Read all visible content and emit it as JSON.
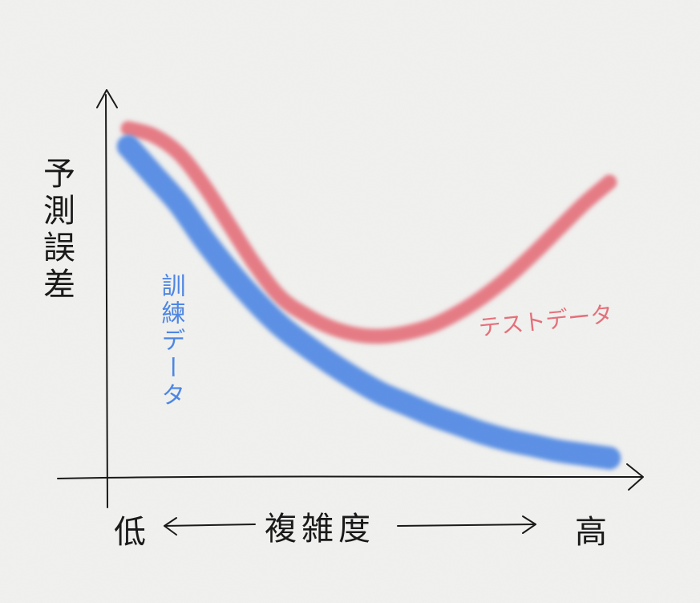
{
  "chart_data": {
    "type": "line",
    "title": "",
    "ylabel": "予測誤差",
    "xlabel": "複雑度",
    "x_low_label": "低",
    "x_high_label": "高",
    "xlim": [
      0,
      10
    ],
    "ylim": [
      0,
      10
    ],
    "series": [
      {
        "name": "テストデータ",
        "color": "#e4707a",
        "x": [
          0.0,
          0.5,
          1.0,
          1.5,
          2.0,
          2.5,
          3.0,
          3.5,
          4.0,
          4.5,
          5.0,
          5.5,
          6.0,
          6.5,
          7.0,
          7.5,
          8.0,
          8.5,
          9.0,
          9.5
        ],
        "y": [
          9.3,
          9.1,
          8.6,
          7.7,
          6.6,
          5.5,
          4.6,
          4.1,
          3.75,
          3.55,
          3.5,
          3.6,
          3.8,
          4.15,
          4.6,
          5.15,
          5.8,
          6.5,
          7.2,
          7.8
        ]
      },
      {
        "name": "訓練データ",
        "color": "#4d86e3",
        "x": [
          0.0,
          0.5,
          1.0,
          1.5,
          2.0,
          2.5,
          3.0,
          3.5,
          4.0,
          4.5,
          5.0,
          5.5,
          6.0,
          6.5,
          7.0,
          7.5,
          8.0,
          8.5,
          9.0,
          9.5
        ],
        "y": [
          8.8,
          8.0,
          7.2,
          6.2,
          5.3,
          4.5,
          3.8,
          3.25,
          2.75,
          2.3,
          1.9,
          1.6,
          1.3,
          1.05,
          0.8,
          0.6,
          0.45,
          0.3,
          0.2,
          0.1
        ]
      }
    ],
    "grid": false,
    "legend": "inline"
  }
}
